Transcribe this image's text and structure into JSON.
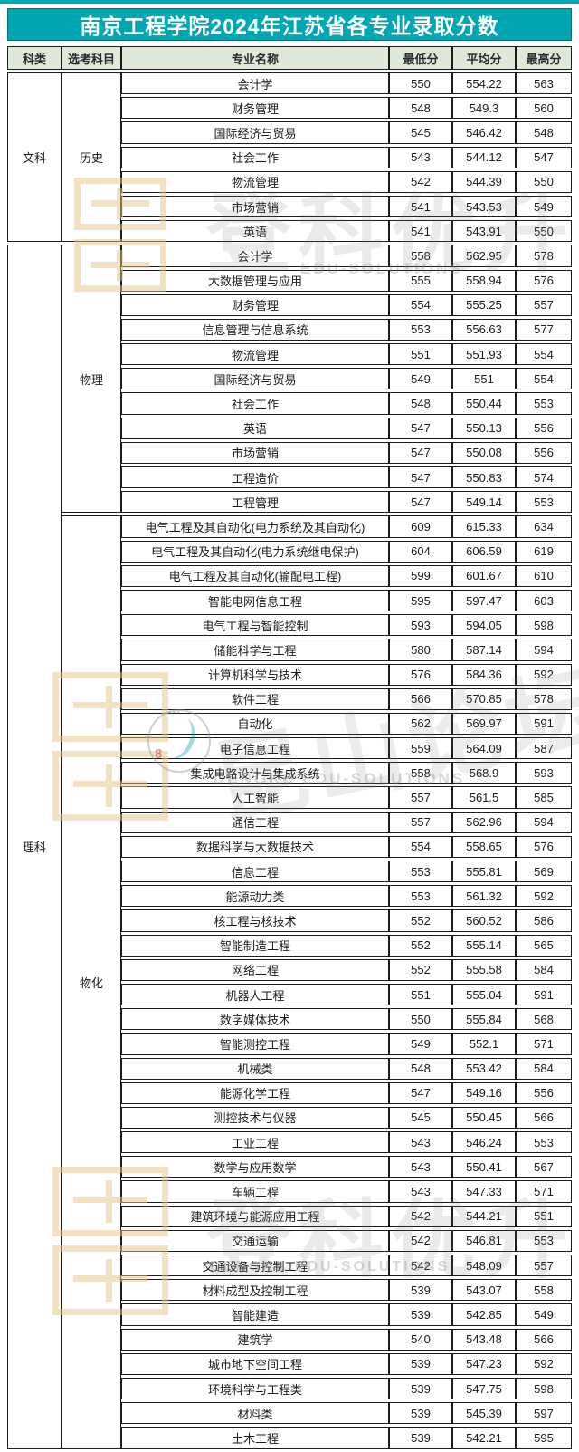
{
  "title": "南京工程学院2024年江苏省各专业录取分数",
  "colors": {
    "title_bar_teal": "#00a6b2",
    "header_row_green": "#dfe9d8",
    "border_black": "#1c1c1c",
    "seal_gold": "#e8c684"
  },
  "watermarks": {
    "brand_text": "登科优升",
    "edu_text": "EDU-SOLUTIONS",
    "dengke_text": "DENGKE EDU-SOLUTIONS",
    "forum_text": "昆山论坛"
  },
  "chart_data": {
    "type": "table",
    "title": "南京工程学院2024年江苏省各专业录取分数",
    "columns": [
      "科类",
      "选考科目",
      "专业名称",
      "最低分",
      "平均分",
      "最高分"
    ],
    "sections": [
      {
        "category": "文科",
        "groups": [
          {
            "subject": "历史",
            "rows": [
              [
                "会计学",
                "550",
                "554.22",
                "563"
              ],
              [
                "财务管理",
                "548",
                "549.3",
                "560"
              ],
              [
                "国际经济与贸易",
                "545",
                "546.42",
                "548"
              ],
              [
                "社会工作",
                "543",
                "544.12",
                "547"
              ],
              [
                "物流管理",
                "542",
                "544.39",
                "550"
              ],
              [
                "市场营销",
                "541",
                "543.53",
                "549"
              ],
              [
                "英语",
                "541",
                "543.91",
                "550"
              ]
            ]
          }
        ]
      },
      {
        "category": "理科",
        "groups": [
          {
            "subject": "物理",
            "rows": [
              [
                "会计学",
                "558",
                "562.95",
                "578"
              ],
              [
                "大数据管理与应用",
                "555",
                "558.94",
                "576"
              ],
              [
                "财务管理",
                "554",
                "555.25",
                "557"
              ],
              [
                "信息管理与信息系统",
                "553",
                "556.63",
                "577"
              ],
              [
                "物流管理",
                "551",
                "551.93",
                "554"
              ],
              [
                "国际经济与贸易",
                "549",
                "551",
                "554"
              ],
              [
                "社会工作",
                "548",
                "550.44",
                "553"
              ],
              [
                "英语",
                "547",
                "550.13",
                "556"
              ],
              [
                "市场营销",
                "547",
                "550.08",
                "556"
              ],
              [
                "工程造价",
                "547",
                "550.83",
                "574"
              ],
              [
                "工程管理",
                "547",
                "549.14",
                "553"
              ]
            ]
          },
          {
            "subject": "物化",
            "rows": [
              [
                "电气工程及其自动化(电力系统及其自动化)",
                "609",
                "615.33",
                "634"
              ],
              [
                "电气工程及其自动化(电力系统继电保护)",
                "604",
                "606.59",
                "619"
              ],
              [
                "电气工程及其自动化(输配电工程)",
                "599",
                "601.67",
                "610"
              ],
              [
                "智能电网信息工程",
                "595",
                "597.47",
                "603"
              ],
              [
                "电气工程与智能控制",
                "593",
                "594.05",
                "598"
              ],
              [
                "储能科学与工程",
                "580",
                "587.14",
                "594"
              ],
              [
                "计算机科学与技术",
                "576",
                "584.36",
                "592"
              ],
              [
                "软件工程",
                "566",
                "570.85",
                "578"
              ],
              [
                "自动化",
                "562",
                "569.97",
                "591"
              ],
              [
                "电子信息工程",
                "559",
                "564.09",
                "587"
              ],
              [
                "集成电路设计与集成系统",
                "558",
                "568.9",
                "593"
              ],
              [
                "人工智能",
                "557",
                "561.5",
                "585"
              ],
              [
                "通信工程",
                "557",
                "562.96",
                "594"
              ],
              [
                "数据科学与大数据技术",
                "554",
                "558.65",
                "576"
              ],
              [
                "信息工程",
                "553",
                "555.81",
                "569"
              ],
              [
                "能源动力类",
                "553",
                "561.32",
                "592"
              ],
              [
                "核工程与核技术",
                "552",
                "560.52",
                "586"
              ],
              [
                "智能制造工程",
                "552",
                "555.14",
                "565"
              ],
              [
                "网络工程",
                "552",
                "555.58",
                "584"
              ],
              [
                "机器人工程",
                "551",
                "555.04",
                "591"
              ],
              [
                "数字媒体技术",
                "550",
                "555.84",
                "568"
              ],
              [
                "智能测控工程",
                "549",
                "552.1",
                "571"
              ],
              [
                "机械类",
                "548",
                "553.42",
                "584"
              ],
              [
                "能源化学工程",
                "547",
                "549.16",
                "556"
              ],
              [
                "测控技术与仪器",
                "545",
                "550.45",
                "566"
              ],
              [
                "工业工程",
                "543",
                "546.24",
                "553"
              ],
              [
                "数学与应用数学",
                "543",
                "550.41",
                "567"
              ],
              [
                "车辆工程",
                "543",
                "547.33",
                "571"
              ],
              [
                "建筑环境与能源应用工程",
                "542",
                "544.21",
                "551"
              ],
              [
                "交通运输",
                "542",
                "546.81",
                "553"
              ],
              [
                "交通设备与控制工程",
                "542",
                "548.09",
                "557"
              ],
              [
                "材料成型及控制工程",
                "539",
                "543.07",
                "558"
              ],
              [
                "智能建造",
                "539",
                "542.85",
                "549"
              ],
              [
                "建筑学",
                "540",
                "543.48",
                "566"
              ],
              [
                "城市地下空间工程",
                "539",
                "547.23",
                "592"
              ],
              [
                "环境科学与工程类",
                "539",
                "547.75",
                "598"
              ],
              [
                "材料类",
                "539",
                "545.39",
                "597"
              ],
              [
                "土木工程",
                "539",
                "542.21",
                "595"
              ]
            ]
          }
        ]
      }
    ]
  }
}
